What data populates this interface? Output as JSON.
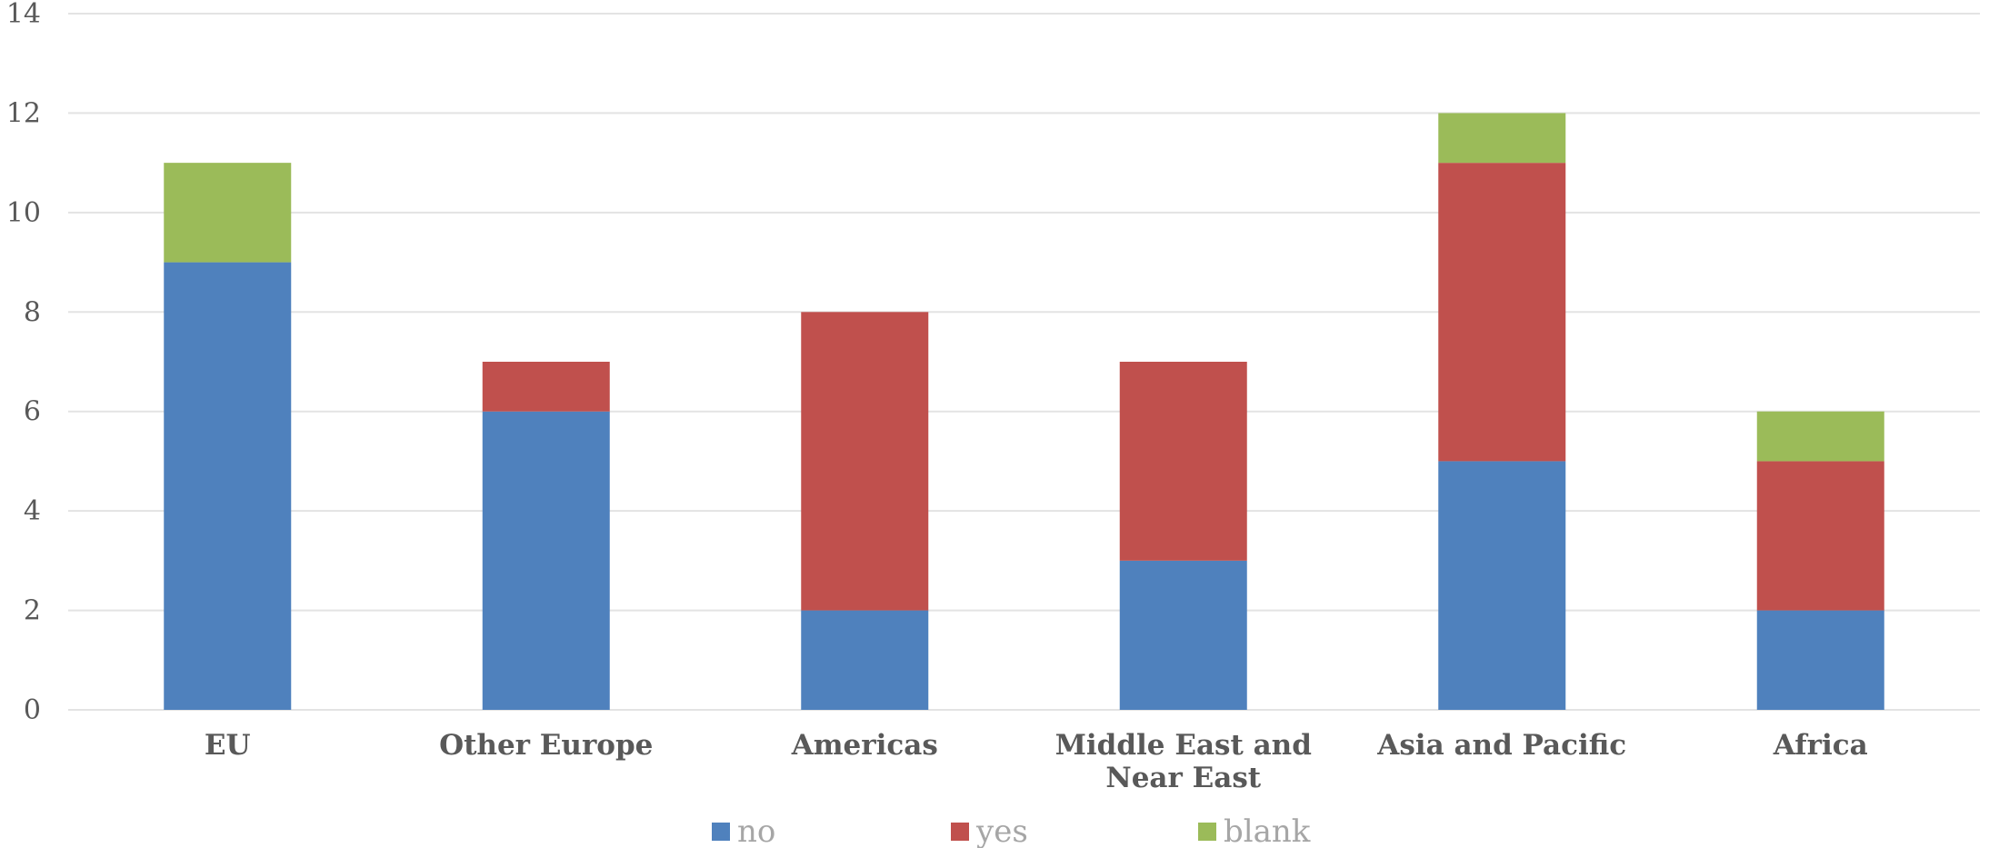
{
  "chart_data": {
    "type": "bar",
    "stacked": true,
    "categories": [
      [
        "EU"
      ],
      [
        "Other Europe"
      ],
      [
        "Americas"
      ],
      [
        "Middle East and",
        "Near East"
      ],
      [
        "Asia and Pacific"
      ],
      [
        "Africa"
      ]
    ],
    "series": [
      {
        "name": "no",
        "color": "#4f81bd",
        "values": [
          9,
          6,
          2,
          3,
          5,
          2
        ]
      },
      {
        "name": "yes",
        "color": "#c0504d",
        "values": [
          0,
          1,
          6,
          4,
          6,
          3
        ]
      },
      {
        "name": "blank",
        "color": "#9bbb59",
        "values": [
          2,
          0,
          0,
          0,
          1,
          1
        ]
      }
    ],
    "ylim": [
      0,
      14
    ],
    "yticks": [
      0,
      2,
      4,
      6,
      8,
      10,
      12,
      14
    ],
    "grid": true,
    "legend_position": "bottom"
  }
}
